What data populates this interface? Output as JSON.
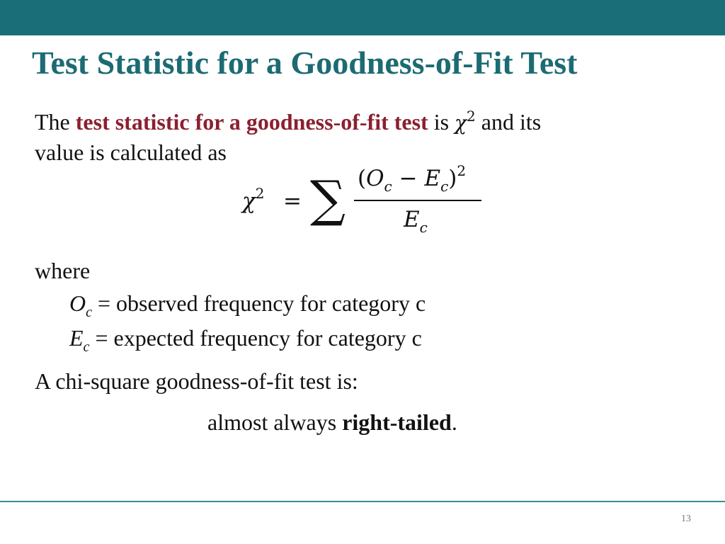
{
  "slide": {
    "title": "Test Statistic for a Goodness-of-Fit Test",
    "intro": {
      "part1": "The ",
      "highlight": "test statistic for a goodness-of-fit test",
      "part2": " is ",
      "symbol": "χ",
      "symbol_exp": "2",
      "part3": " and its",
      "line2": "value is calculated as"
    },
    "formula": {
      "lhs": "χ",
      "lhs_exp": "2",
      "equals": "=",
      "sum": "∑",
      "num_open": "(",
      "num_O": "O",
      "num_O_sub": "c",
      "num_minus": "−",
      "num_E": "E",
      "num_E_sub": "c",
      "num_close": ")",
      "num_exp": "2",
      "den_E": "E",
      "den_E_sub": "c"
    },
    "where": "where",
    "definitions": [
      {
        "var": "O",
        "sub": "c",
        "eq": " = ",
        "text": "observed frequency for category c"
      },
      {
        "var": "E",
        "sub": "c",
        "eq": " = ",
        "text": "expected frequency for category c"
      }
    ],
    "chi_line": "A chi-square goodness-of-fit test is:",
    "conclusion": {
      "part1": "almost always ",
      "bold": "right-tailed",
      "part2": "."
    },
    "page_number": "13"
  },
  "colors": {
    "band": "#1a6e78",
    "title": "#1c6b73",
    "highlight": "#8b2030"
  }
}
